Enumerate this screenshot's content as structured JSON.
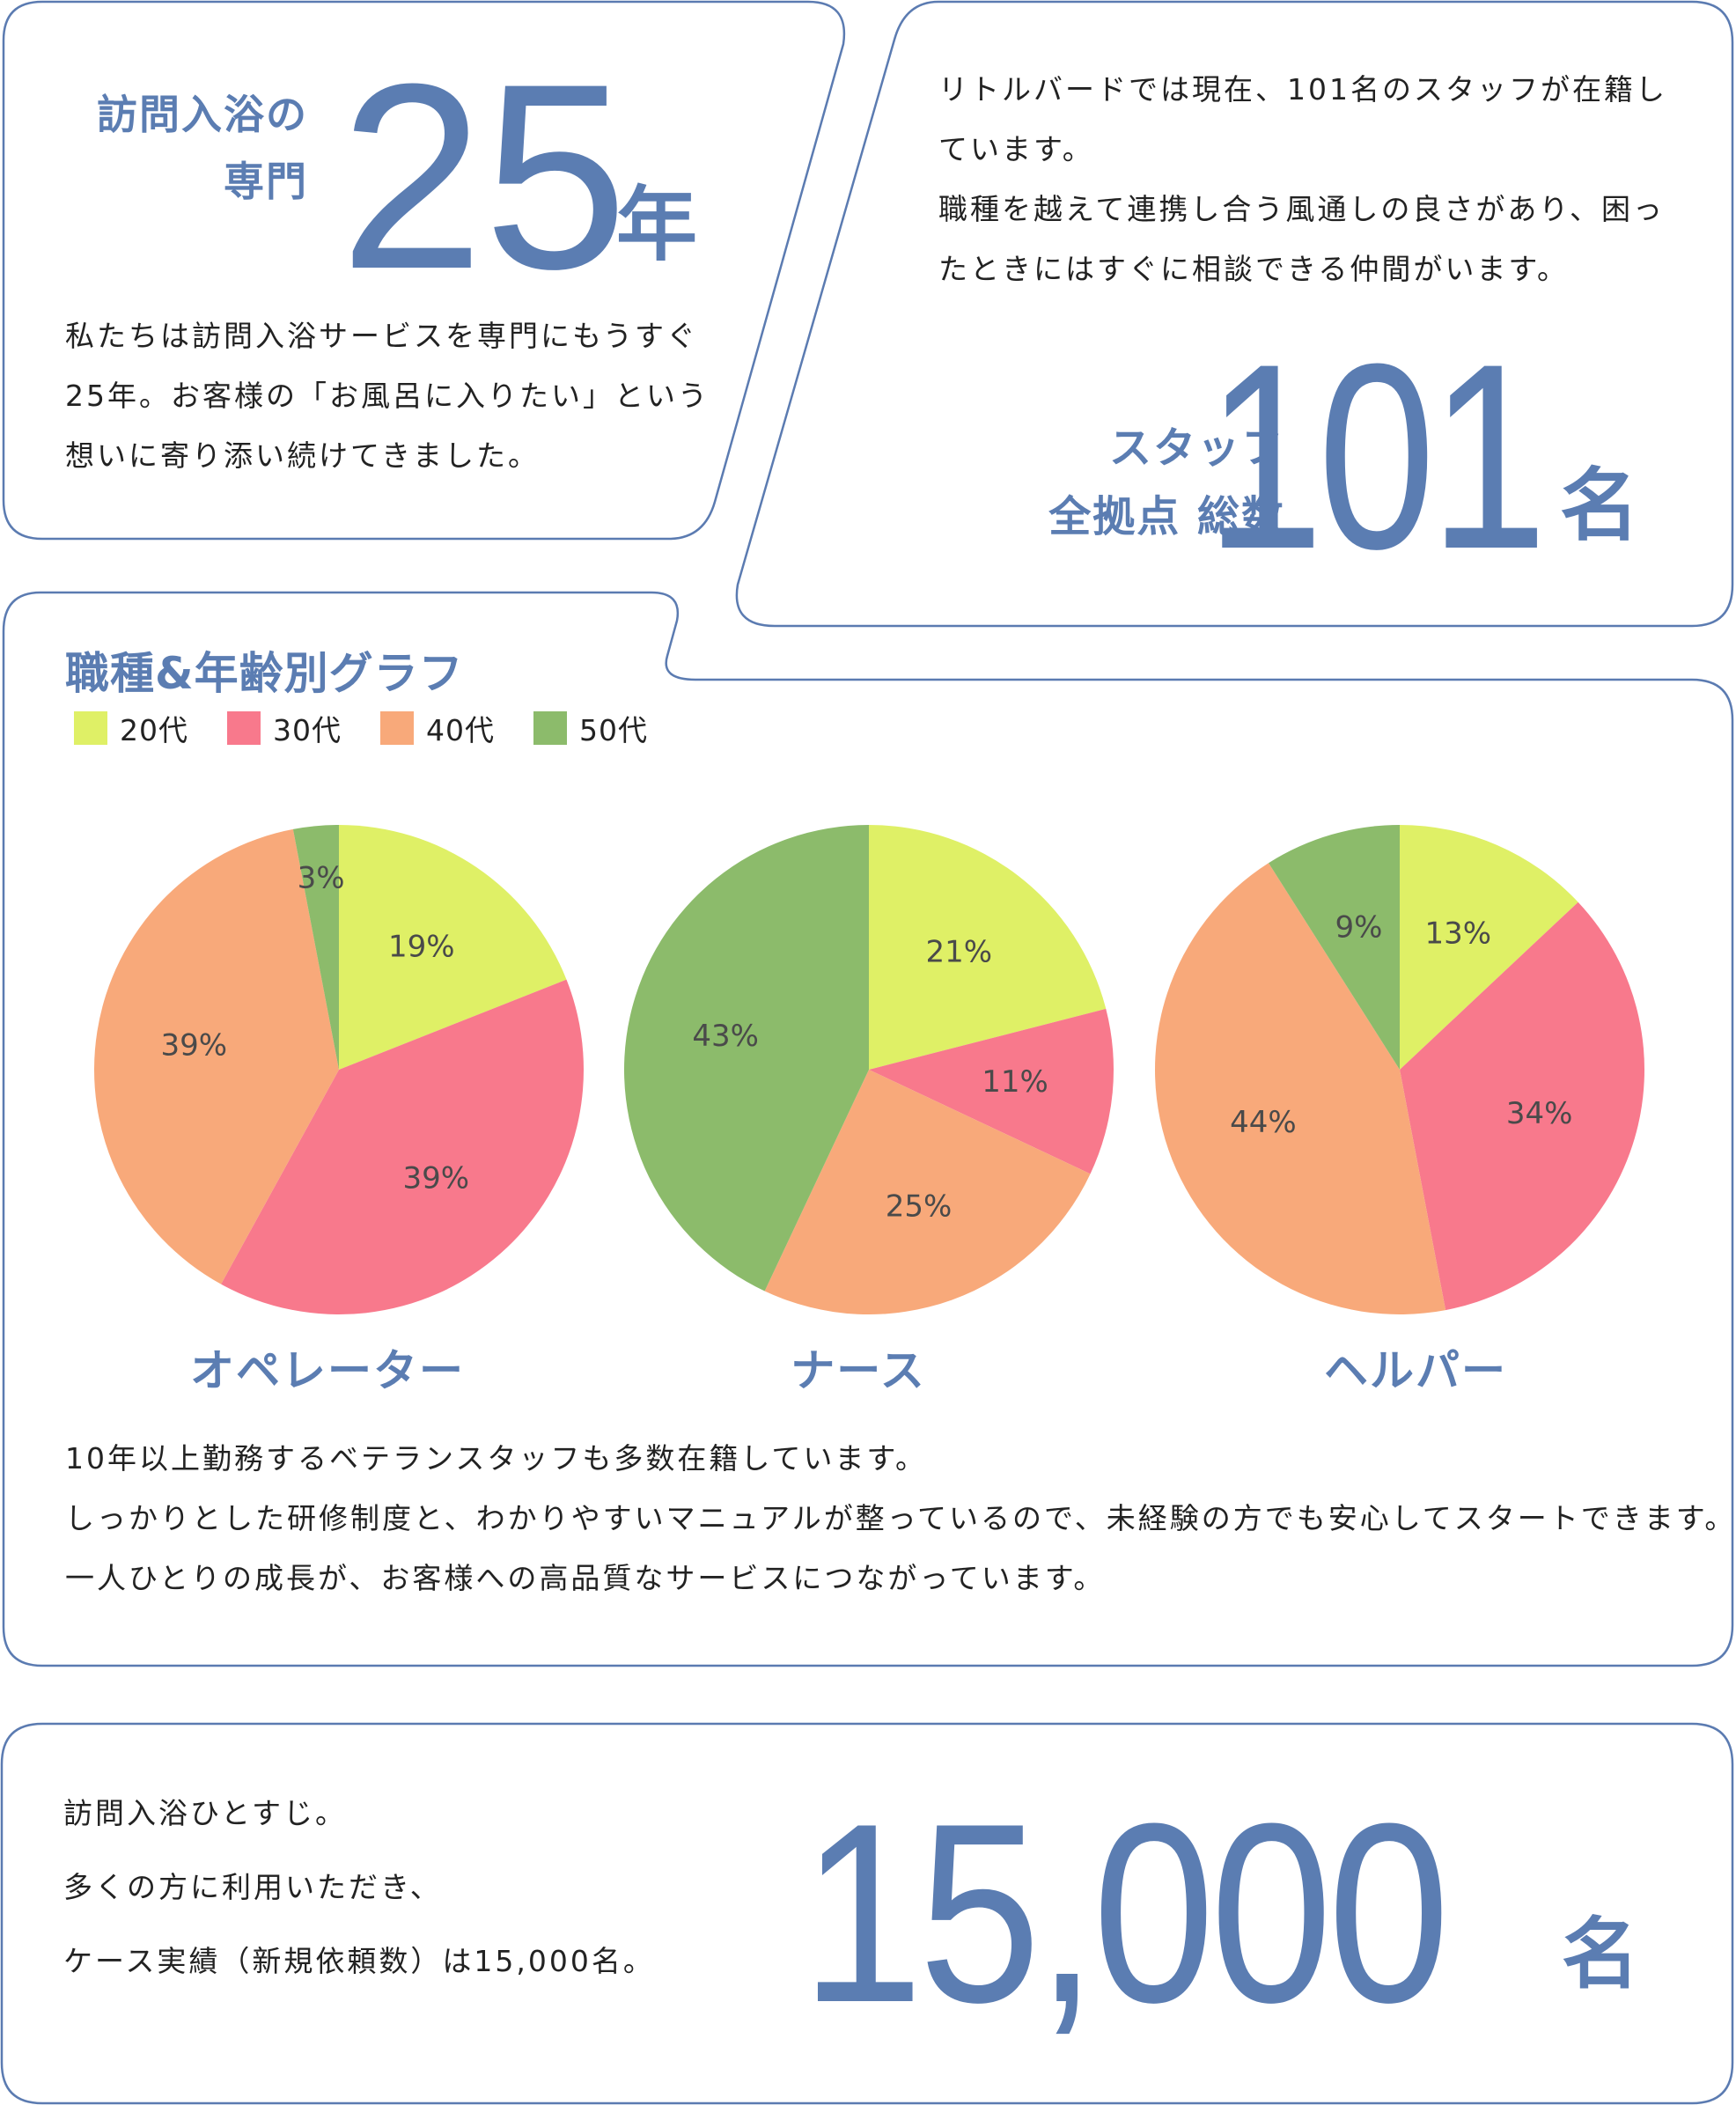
{
  "colors": {
    "accent": "#5b7db2",
    "border": "#5b7bb1",
    "text": "#222222",
    "age_20s": "#dff066",
    "age_30s": "#f8798c",
    "age_40s": "#f8a97a",
    "age_50s": "#8cbb6b"
  },
  "card_years": {
    "label_line1": "訪問入浴の",
    "label_line2": "専門",
    "number": "25",
    "unit": "年",
    "body_lines": [
      "私たちは訪問入浴サービスを専門にもうすぐ",
      "25年。お客様の「お風呂に入りたい」という",
      "想いに寄り添い続けてきました。"
    ]
  },
  "card_staff": {
    "body_lines": [
      "リトルバードでは現在、101名のスタッフが在籍し",
      "ています。",
      "職種を越えて連携し合う風通しの良さがあり、困っ",
      "たときにはすぐに相談できる仲間がいます。"
    ],
    "label_line1": "スタッフ",
    "label_line2": "全拠点 総数",
    "number": "101",
    "unit": "名"
  },
  "card_chart": {
    "title": "職種&年齢別グラフ",
    "legend": [
      {
        "label": "20代",
        "color": "#dff066"
      },
      {
        "label": "30代",
        "color": "#f8798c"
      },
      {
        "label": "40代",
        "color": "#f8a97a"
      },
      {
        "label": "50代",
        "color": "#8cbb6b"
      }
    ],
    "body_lines": [
      "10年以上勤務するベテランスタッフも多数在籍しています。",
      "しっかりとした研修制度と、わかりやすいマニュアルが整っているので、未経験の方でも安心してスタートできます。",
      "一人ひとりの成長が、お客様への高品質なサービスにつながっています。"
    ]
  },
  "card_cases": {
    "body_lines": [
      "訪問入浴ひとすじ。",
      "多くの方に利用いただき、",
      "ケース実績（新規依頼数）は15,000名。"
    ],
    "number": "15,000",
    "unit": "名"
  },
  "chart_data": [
    {
      "type": "pie",
      "title": "オペレーター",
      "categories": [
        "20代",
        "30代",
        "40代",
        "50代"
      ],
      "values": [
        19,
        39,
        39,
        3
      ],
      "labels": [
        "19%",
        "39%",
        "39%",
        "3%"
      ],
      "legend_position": "top-left",
      "start_angle": "12 o'clock, clockwise"
    },
    {
      "type": "pie",
      "title": "ナース",
      "categories": [
        "20代",
        "30代",
        "40代",
        "50代"
      ],
      "values": [
        21,
        11,
        25,
        43
      ],
      "labels": [
        "21%",
        "11%",
        "25%",
        "43%"
      ],
      "legend_position": "top-left",
      "start_angle": "12 o'clock, clockwise"
    },
    {
      "type": "pie",
      "title": "ヘルパー",
      "categories": [
        "20代",
        "30代",
        "40代",
        "50代"
      ],
      "values": [
        13,
        34,
        44,
        9
      ],
      "labels": [
        "13%",
        "34%",
        "44%",
        "9%"
      ],
      "legend_position": "top-left",
      "start_angle": "12 o'clock, clockwise"
    }
  ]
}
